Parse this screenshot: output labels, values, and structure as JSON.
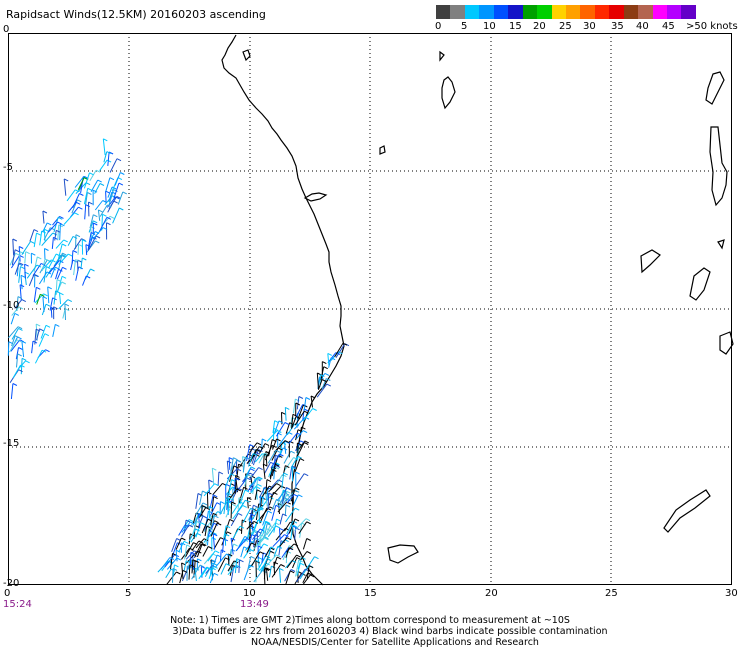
{
  "title": "Rapidsact Winds(12.5KM) 20160203 ascending",
  "legend": {
    "colors": [
      "#404040",
      "#808080",
      "#00c8ff",
      "#0096ff",
      "#0050ff",
      "#1414c8",
      "#00a000",
      "#00d000",
      "#ffd200",
      "#ffa000",
      "#ff6400",
      "#ff2800",
      "#e60000",
      "#8c3c14",
      "#b46450",
      "#ff00ff",
      "#b400ff",
      "#6400c8"
    ],
    "labels": [
      "0",
      "5",
      "10",
      "15",
      "20",
      "25",
      "30",
      "35",
      "40",
      "45",
      ">50 knots"
    ]
  },
  "axes": {
    "x_ticks": [
      "0",
      "5",
      "10",
      "15",
      "20",
      "25",
      "30"
    ],
    "y_ticks": [
      "0",
      "-5",
      "-10",
      "-15",
      "-20"
    ]
  },
  "times": [
    "15:24",
    "13:49"
  ],
  "notes": [
    "Note: 1) Times are GMT 2)Times along bottom correspond to measurement at ~10S",
    "3)Data buffer is 22 hrs from 20160203 4) Black wind barbs indicate possible contamination",
    "NOAA/NESDIS/Center for Satellite Applications and Research"
  ]
}
